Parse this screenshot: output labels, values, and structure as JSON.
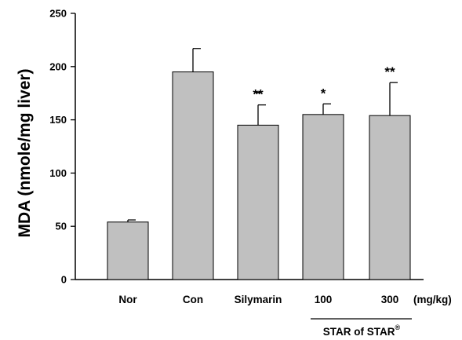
{
  "chart_data": {
    "type": "bar",
    "categories": [
      "Nor",
      "Con",
      "Silymarin",
      "100",
      "300"
    ],
    "values": [
      54,
      195,
      145,
      155,
      154
    ],
    "errors": [
      2,
      22,
      19,
      10,
      31
    ],
    "significance": [
      "",
      "",
      "**",
      "*",
      "**"
    ],
    "ylabel": "MDA (nmole/mg liver)",
    "ylim": [
      0,
      250
    ],
    "yticks": [
      0,
      50,
      100,
      150,
      200,
      250
    ],
    "unit_label": "(mg/kg)",
    "group_label": "STAR of STAR",
    "group_label_sup": "®",
    "bar_color": "#c0c0c0",
    "edge_color": "#000000",
    "grid": false,
    "legend": "none"
  }
}
